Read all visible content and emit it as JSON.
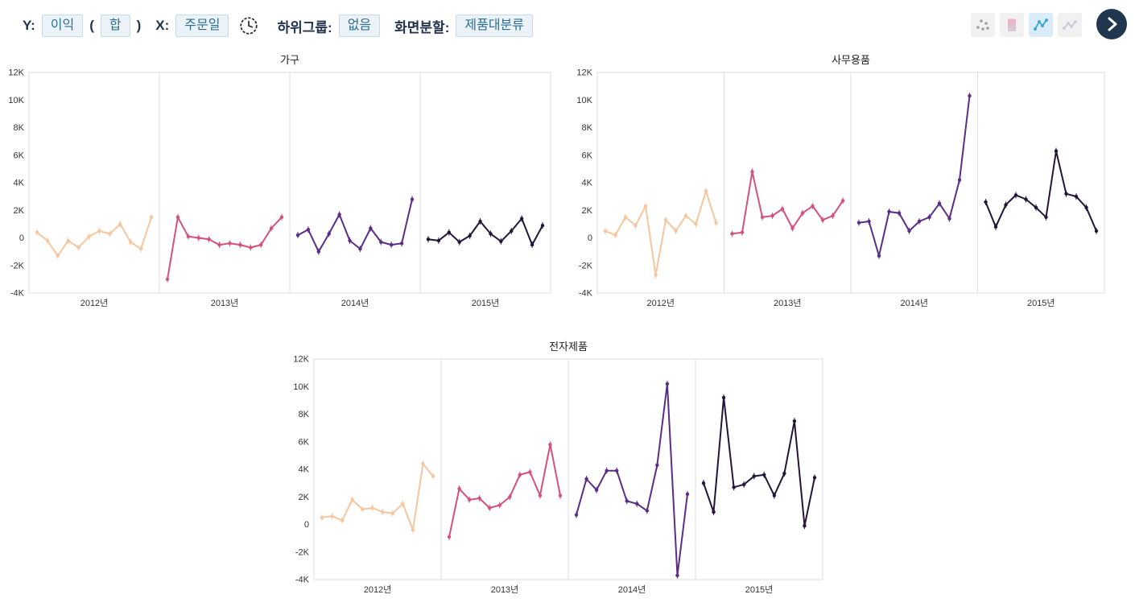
{
  "toolbar": {
    "y_label": "Y:",
    "y_field": "이익",
    "paren_open": "(",
    "aggregation": "합",
    "paren_close": ")",
    "x_label": "X:",
    "x_field": "주문일",
    "subgroup_label": "하위그룹:",
    "subgroup_value": "없음",
    "split_label": "화면분할:",
    "split_value": "제품대분류"
  },
  "chart_type_toolbar": {
    "buttons": [
      {
        "name": "scatter",
        "selected": false
      },
      {
        "name": "bar",
        "selected": false
      },
      {
        "name": "line",
        "selected": true
      },
      {
        "name": "area",
        "selected": false
      }
    ],
    "next_button": "next-arrow"
  },
  "palette": {
    "year_2012": "#f6c69e",
    "year_2013": "#d4517e",
    "year_2014": "#5c2d86",
    "year_2015": "#231539",
    "accent_blue": "#35a3dc",
    "button_navy": "#21364f",
    "grid": "#dddddd"
  },
  "chart_data": [
    {
      "type": "line",
      "title": "가구",
      "xlabel": "",
      "ylabel": "",
      "ylim": [
        -4000,
        12000
      ],
      "ytick_labels": [
        "12K",
        "10K",
        "8K",
        "6K",
        "4K",
        "2K",
        "0",
        "-2K",
        "-4K"
      ],
      "panels": [
        "2012년",
        "2013년",
        "2014년",
        "2015년"
      ],
      "legend": "none",
      "grid": "panel-borders-only",
      "series": [
        {
          "name": "2012년",
          "color": "#f6c69e",
          "values": [
            400,
            -200,
            -1300,
            -200,
            -700,
            100,
            500,
            300,
            1000,
            -300,
            -800,
            1500
          ]
        },
        {
          "name": "2013년",
          "color": "#d4517e",
          "values": [
            -3000,
            1500,
            100,
            0,
            -100,
            -500,
            -400,
            -500,
            -700,
            -500,
            700,
            1500
          ]
        },
        {
          "name": "2014년",
          "color": "#5c2d86",
          "values": [
            200,
            600,
            -1000,
            300,
            1700,
            -200,
            -800,
            700,
            -300,
            -500,
            -400,
            2800
          ]
        },
        {
          "name": "2015년",
          "color": "#231539",
          "values": [
            -100,
            -200,
            400,
            -300,
            150,
            1200,
            300,
            -250,
            500,
            1400,
            -500,
            900
          ]
        }
      ]
    },
    {
      "type": "line",
      "title": "사무용품",
      "xlabel": "",
      "ylabel": "",
      "ylim": [
        -4000,
        12000
      ],
      "ytick_labels": [
        "12K",
        "10K",
        "8K",
        "6K",
        "4K",
        "2K",
        "0",
        "-2K",
        "-4K"
      ],
      "panels": [
        "2012년",
        "2013년",
        "2014년",
        "2015년"
      ],
      "legend": "none",
      "grid": "panel-borders-only",
      "series": [
        {
          "name": "2012년",
          "color": "#f6c69e",
          "values": [
            500,
            200,
            1500,
            900,
            2300,
            -2700,
            1300,
            500,
            1600,
            1000,
            3400,
            1100
          ]
        },
        {
          "name": "2013년",
          "color": "#d4517e",
          "values": [
            300,
            400,
            4800,
            1500,
            1600,
            2100,
            700,
            1800,
            2300,
            1300,
            1600,
            2700
          ]
        },
        {
          "name": "2014년",
          "color": "#5c2d86",
          "values": [
            1100,
            1200,
            -1300,
            1900,
            1800,
            500,
            1200,
            1500,
            2500,
            1400,
            4200,
            10300
          ]
        },
        {
          "name": "2015년",
          "color": "#231539",
          "values": [
            2600,
            800,
            2400,
            3100,
            2800,
            2200,
            1500,
            6300,
            3200,
            3000,
            2200,
            500
          ]
        }
      ]
    },
    {
      "type": "line",
      "title": "전자제품",
      "xlabel": "",
      "ylabel": "",
      "ylim": [
        -4000,
        12000
      ],
      "ytick_labels": [
        "12K",
        "10K",
        "8K",
        "6K",
        "4K",
        "2K",
        "0",
        "-2K",
        "-4K"
      ],
      "panels": [
        "2012년",
        "2013년",
        "2014년",
        "2015년"
      ],
      "legend": "none",
      "grid": "panel-borders-only",
      "series": [
        {
          "name": "2012년",
          "color": "#f6c69e",
          "values": [
            500,
            600,
            300,
            1800,
            1100,
            1200,
            900,
            800,
            1500,
            -400,
            4400,
            3500
          ]
        },
        {
          "name": "2013년",
          "color": "#d4517e",
          "values": [
            -900,
            2600,
            1800,
            1900,
            1200,
            1400,
            2000,
            3600,
            3800,
            2100,
            5800,
            2100
          ]
        },
        {
          "name": "2014년",
          "color": "#5c2d86",
          "values": [
            700,
            3300,
            2500,
            3900,
            3900,
            1700,
            1500,
            1000,
            4300,
            10200,
            -3700,
            2200
          ]
        },
        {
          "name": "2015년",
          "color": "#231539",
          "values": [
            3000,
            900,
            9200,
            2700,
            2900,
            3500,
            3600,
            2100,
            3700,
            7500,
            -100,
            3400
          ]
        }
      ]
    }
  ]
}
